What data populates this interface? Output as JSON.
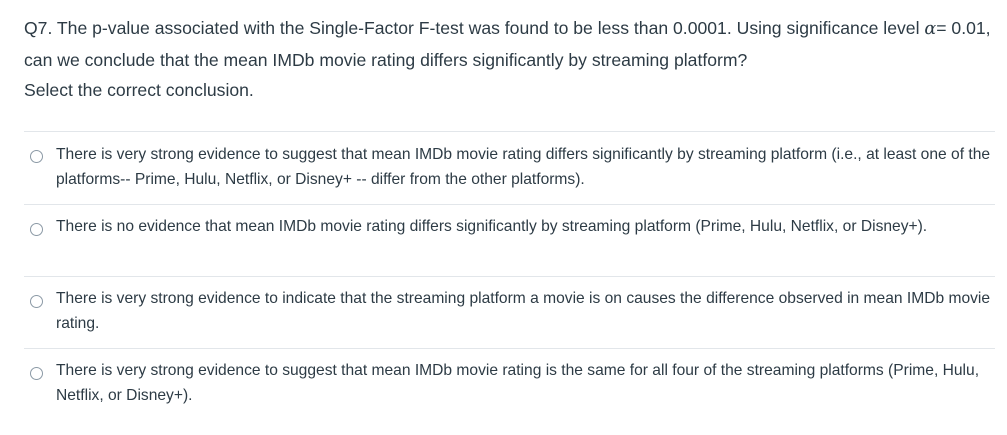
{
  "question": {
    "text_before_alpha": "Q7. The p-value associated with the Single-Factor F-test was found to be less than 0.0001. Using  significance level ",
    "alpha_symbol": "α",
    "text_after_alpha": "= 0.01, can we conclude that the mean IMDb movie rating differs significantly by streaming platform?",
    "instruction": "Select the correct conclusion."
  },
  "answers": [
    {
      "label": "There is very strong evidence to suggest that mean IMDb movie rating differs significantly by streaming platform (i.e., at least one of the platforms-- Prime, Hulu, Netflix, or Disney+ -- differ from the other platforms).",
      "selected": false
    },
    {
      "label": "There is no evidence that mean IMDb movie rating differs significantly by streaming platform (Prime, Hulu, Netflix, or Disney+).",
      "selected": false
    },
    {
      "label": "There is very strong evidence to indicate that the streaming platform a movie is on causes the difference observed in mean IMDb movie rating.",
      "selected": false
    },
    {
      "label": "There is very strong evidence to suggest that mean IMDb movie rating is the same for all four of the streaming platforms (Prime, Hulu, Netflix, or Disney+).",
      "selected": false
    }
  ]
}
